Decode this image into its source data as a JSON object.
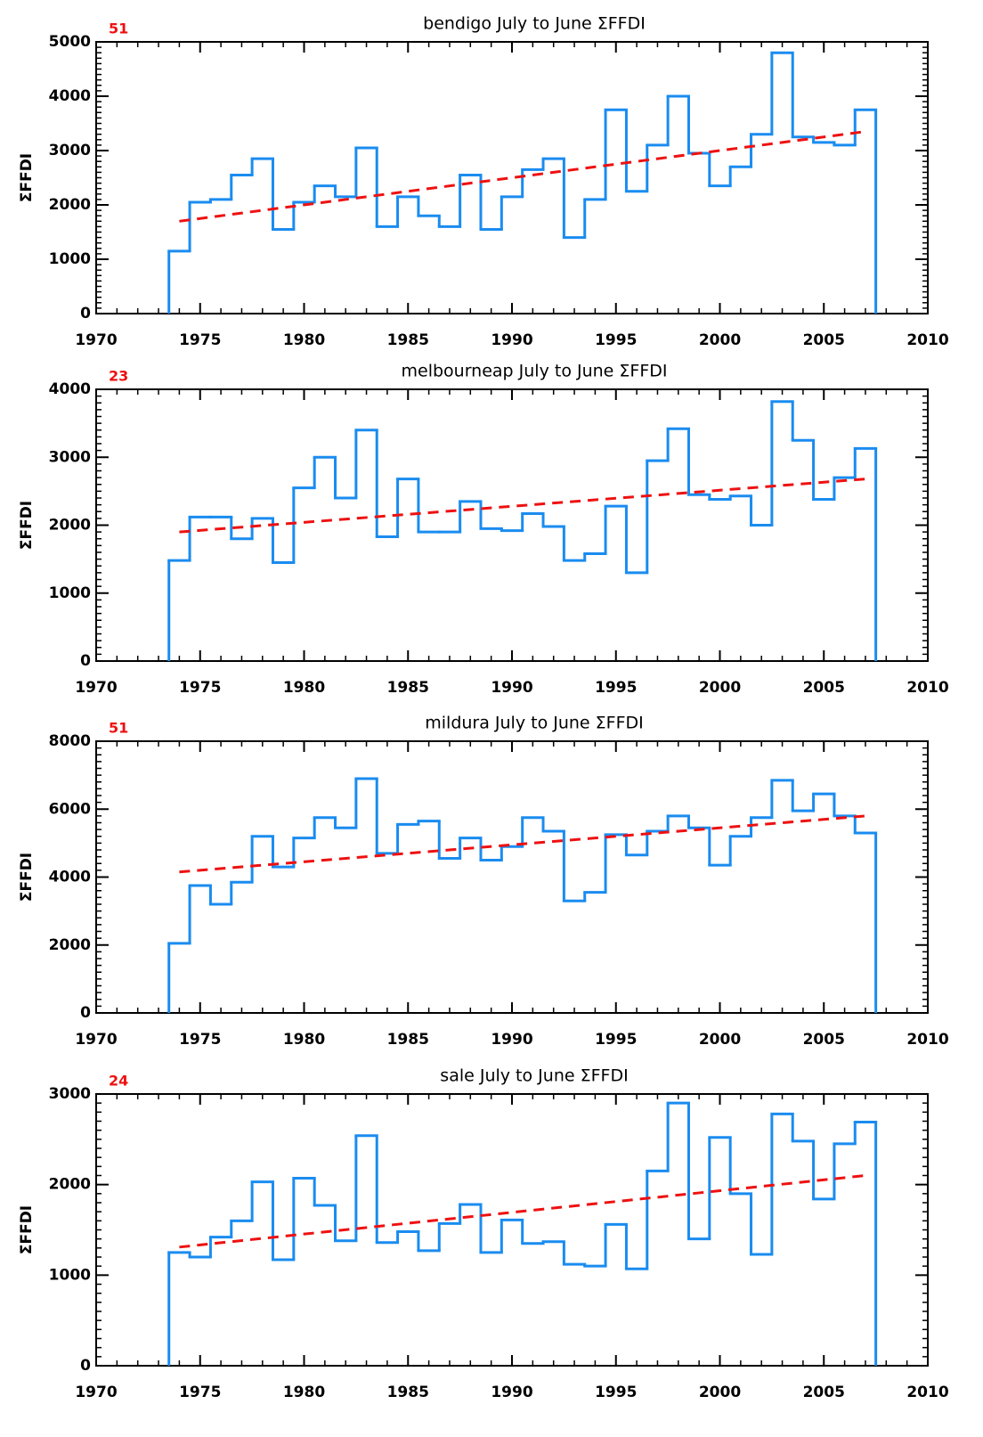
{
  "chart_data": [
    {
      "type": "step",
      "title": "bendigo July to June ΣFFDI",
      "annotation": "51",
      "ylabel": "ΣFFDI",
      "x": [
        1974,
        1975,
        1976,
        1977,
        1978,
        1979,
        1980,
        1981,
        1982,
        1983,
        1984,
        1985,
        1986,
        1987,
        1988,
        1989,
        1990,
        1991,
        1992,
        1993,
        1994,
        1995,
        1996,
        1997,
        1998,
        1999,
        2000,
        2001,
        2002,
        2003,
        2004,
        2005,
        2006,
        2007
      ],
      "values": [
        1150,
        2050,
        2100,
        2550,
        2850,
        1550,
        2050,
        2350,
        2150,
        3050,
        1600,
        2150,
        1800,
        1600,
        2550,
        1550,
        2150,
        2650,
        2850,
        1400,
        2100,
        3750,
        2250,
        3100,
        4000,
        2950,
        2350,
        2700,
        3300,
        4800,
        3250,
        3150,
        3100,
        3750
      ],
      "color": "#1a8cf0",
      "trend": {
        "x": [
          1974,
          2007
        ],
        "values": [
          1700,
          3350
        ],
        "color": "#ee1111"
      },
      "xlim": [
        1970,
        2010
      ],
      "xticks": [
        1970,
        1975,
        1980,
        1985,
        1990,
        1995,
        2000,
        2005,
        2010
      ],
      "ylim": [
        0,
        5000
      ],
      "yticks": [
        0,
        1000,
        2000,
        3000,
        4000,
        5000
      ]
    },
    {
      "type": "step",
      "title": "melbourneap July to June ΣFFDI",
      "annotation": "23",
      "ylabel": "ΣFFDI",
      "x": [
        1974,
        1975,
        1976,
        1977,
        1978,
        1979,
        1980,
        1981,
        1982,
        1983,
        1984,
        1985,
        1986,
        1987,
        1988,
        1989,
        1990,
        1991,
        1992,
        1993,
        1994,
        1995,
        1996,
        1997,
        1998,
        1999,
        2000,
        2001,
        2002,
        2003,
        2004,
        2005,
        2006,
        2007
      ],
      "values": [
        1480,
        2120,
        2120,
        1800,
        2100,
        1450,
        2550,
        3000,
        2400,
        3400,
        1830,
        2680,
        1900,
        1900,
        2350,
        1950,
        1920,
        2170,
        1980,
        1480,
        1580,
        2280,
        1300,
        2950,
        3420,
        2450,
        2380,
        2430,
        2000,
        3820,
        3250,
        2380,
        2700,
        3130
      ],
      "color": "#1a8cf0",
      "trend": {
        "x": [
          1974,
          2007
        ],
        "values": [
          1900,
          2680
        ],
        "color": "#ee1111"
      },
      "xlim": [
        1970,
        2010
      ],
      "xticks": [
        1970,
        1975,
        1980,
        1985,
        1990,
        1995,
        2000,
        2005,
        2010
      ],
      "ylim": [
        0,
        4000
      ],
      "yticks": [
        0,
        1000,
        2000,
        3000,
        4000
      ]
    },
    {
      "type": "step",
      "title": "mildura July to June ΣFFDI",
      "annotation": "51",
      "ylabel": "ΣFFDI",
      "x": [
        1974,
        1975,
        1976,
        1977,
        1978,
        1979,
        1980,
        1981,
        1982,
        1983,
        1984,
        1985,
        1986,
        1987,
        1988,
        1989,
        1990,
        1991,
        1992,
        1993,
        1994,
        1995,
        1996,
        1997,
        1998,
        1999,
        2000,
        2001,
        2002,
        2003,
        2004,
        2005,
        2006,
        2007
      ],
      "values": [
        2050,
        3750,
        3200,
        3850,
        5200,
        4300,
        5150,
        5750,
        5450,
        6900,
        4700,
        5550,
        5650,
        4550,
        5150,
        4500,
        4900,
        5750,
        5350,
        3300,
        3550,
        5250,
        4650,
        5350,
        5800,
        5450,
        4350,
        5200,
        5750,
        6850,
        5950,
        6450,
        5800,
        5300
      ],
      "color": "#1a8cf0",
      "trend": {
        "x": [
          1974,
          2007
        ],
        "values": [
          4150,
          5800
        ],
        "color": "#ee1111"
      },
      "xlim": [
        1970,
        2010
      ],
      "xticks": [
        1970,
        1975,
        1980,
        1985,
        1990,
        1995,
        2000,
        2005,
        2010
      ],
      "ylim": [
        0,
        8000
      ],
      "yticks": [
        0,
        2000,
        4000,
        6000,
        8000
      ]
    },
    {
      "type": "step",
      "title": "sale July to June ΣFFDI",
      "annotation": "24",
      "ylabel": "ΣFFDI",
      "x": [
        1974,
        1975,
        1976,
        1977,
        1978,
        1979,
        1980,
        1981,
        1982,
        1983,
        1984,
        1985,
        1986,
        1987,
        1988,
        1989,
        1990,
        1991,
        1992,
        1993,
        1994,
        1995,
        1996,
        1997,
        1998,
        1999,
        2000,
        2001,
        2002,
        2003,
        2004,
        2005,
        2006,
        2007
      ],
      "values": [
        1250,
        1200,
        1420,
        1600,
        2030,
        1170,
        2070,
        1770,
        1380,
        2540,
        1360,
        1480,
        1270,
        1570,
        1780,
        1250,
        1610,
        1350,
        1370,
        1120,
        1100,
        1560,
        1070,
        2150,
        2900,
        1400,
        2520,
        1900,
        1230,
        2780,
        2480,
        1840,
        2450,
        2690
      ],
      "color": "#1a8cf0",
      "trend": {
        "x": [
          1974,
          2007
        ],
        "values": [
          1310,
          2100
        ],
        "color": "#ee1111"
      },
      "xlim": [
        1970,
        2010
      ],
      "xticks": [
        1970,
        1975,
        1980,
        1985,
        1990,
        1995,
        2000,
        2005,
        2010
      ],
      "ylim": [
        0,
        3000
      ],
      "yticks": [
        0,
        1000,
        2000,
        3000
      ]
    }
  ]
}
